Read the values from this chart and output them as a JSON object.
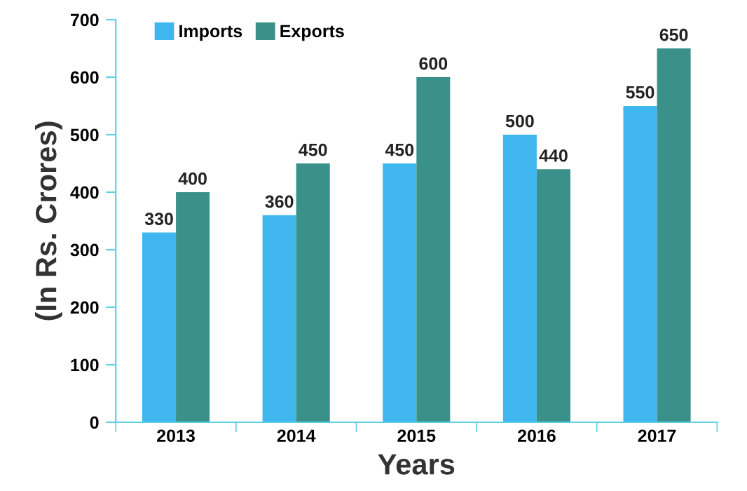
{
  "chart_data": {
    "type": "bar",
    "xlabel": "Years",
    "ylabel": "(In Rs. Crores)",
    "categories": [
      "2013",
      "2014",
      "2015",
      "2016",
      "2017"
    ],
    "series": [
      {
        "name": "Imports",
        "color": "#3fb6ee",
        "values": [
          330,
          360,
          450,
          500,
          550
        ]
      },
      {
        "name": "Exports",
        "color": "#3a9189",
        "values": [
          400,
          450,
          600,
          440,
          650
        ]
      }
    ],
    "ylim": [
      0,
      700
    ],
    "yticks": [
      0,
      100,
      200,
      300,
      400,
      500,
      600,
      700
    ],
    "data_labels": true,
    "grid": false,
    "legend": "top left"
  }
}
